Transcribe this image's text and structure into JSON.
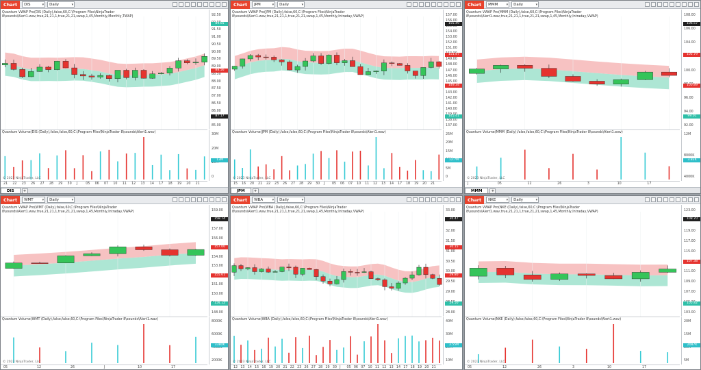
{
  "common": {
    "chart_tab": "Chart",
    "interval": "Daily",
    "copyright": "© 2023 NinjaTrader, LLC",
    "colors": {
      "up": "#35c45a",
      "down": "#e5332f",
      "band_up": "#9fe2cd",
      "band_down": "#f6b7b7",
      "vol_up": "#33c9d4",
      "vol_down": "#e5332f"
    }
  },
  "panels": [
    {
      "symbol": "DIS",
      "tab": "DIS",
      "indicator_title": "Quantum VWAP Pro(DIS (Daily),false,60,C:\\Program Files\\NinjaTrader 8\\sounds\\Alert1.wav,true,21,21,1,true,21,21,swap,1,45,Monthly,Monthly,TWAP)",
      "volume_title": "Quantum Volume(DIS (Daily),false,false,60,C:\\Program Files\\NinjaTrader 8\\sounds\\Alert1.wav)",
      "price_ticks": [
        "92.50",
        "92.00",
        "91.50",
        "91.00",
        "90.50",
        "90.00",
        "89.50",
        "89.00",
        "88.50",
        "88.00",
        "87.50",
        "87.00",
        "86.50",
        "86.00",
        "85.50",
        "85.00"
      ],
      "price_boxes": [
        {
          "text": "89.65",
          "kind": "band"
        },
        {
          "text": "88.56",
          "kind": "down"
        },
        {
          "text": "87.17",
          "kind": "last"
        }
      ],
      "volume_ticks": [
        "30M",
        "20M",
        "10M",
        "0"
      ],
      "volume_box": "13M",
      "dates": [
        "21",
        "22",
        "23",
        "26",
        "27",
        "28",
        "29",
        "30",
        "J",
        "05",
        "06",
        "07",
        "10",
        "11",
        "12",
        "13",
        "14",
        "17",
        "18",
        "19",
        "20",
        "21"
      ]
    },
    {
      "symbol": "JPM",
      "tab": "JPM",
      "indicator_title": "Quantum VWAP Pro(JPM (Daily),false,60,C:\\Program Files\\NinjaTrader 8\\sounds\\Alert1.wav,true,21,21,1,true,21,21,swap,1,45,Monthly,Intraday,VWAP)",
      "volume_title": "Quantum Volume(JPM (Daily),false,false,60,C:\\Program Files\\NinjaTrader 8\\sounds\\Alert1.wav)",
      "price_ticks": [
        "157.00",
        "156.00",
        "155.00",
        "154.00",
        "153.00",
        "152.00",
        "151.00",
        "150.00",
        "149.00",
        "148.00",
        "147.00",
        "146.00",
        "145.00",
        "144.00",
        "143.00",
        "142.00",
        "141.00",
        "140.00",
        "139.00",
        "138.00",
        "137.00"
      ],
      "price_boxes": [
        {
          "text": "155.49",
          "kind": "last"
        },
        {
          "text": "151.87",
          "kind": "down"
        },
        {
          "text": "149.34",
          "kind": "down"
        },
        {
          "text": "145.41",
          "kind": "band"
        }
      ],
      "volume_ticks": [
        "25M",
        "20M",
        "15M",
        "10M",
        "5M",
        "0"
      ],
      "volume_box": "12.7M",
      "dates": [
        "15",
        "16",
        "20",
        "21",
        "22",
        "23",
        "26",
        "27",
        "28",
        "29",
        "30",
        "J",
        "05",
        "06",
        "07",
        "10",
        "11",
        "12",
        "13",
        "14",
        "17",
        "18",
        "19",
        "20",
        "21"
      ]
    },
    {
      "symbol": "MMM",
      "tab": "MMM",
      "indicator_title": "Quantum VWAP Pro(MMM (Daily),false,60,C:\\Program Files\\NinjaTrader 8\\sounds\\Alert1.wav,true,21,21,1,true,21,21,swap,1,45,Monthly,Intraday,VWAP)",
      "volume_title": "Quantum Volume(MMM (Daily),false,false,60,C:\\Program Files\\NinjaTrader 8\\sounds\\Alert1.wav)",
      "price_ticks": [
        "108.00",
        "106.00",
        "104.00",
        "102.00",
        "100.00",
        "98.00",
        "96.00",
        "94.00",
        "92.00"
      ],
      "price_boxes": [
        {
          "text": "106.57",
          "kind": "last"
        },
        {
          "text": "105.79",
          "kind": "down"
        },
        {
          "text": "100.89",
          "kind": "down"
        },
        {
          "text": "99.01",
          "kind": "band"
        }
      ],
      "volume_ticks": [
        "12M",
        "8000K",
        "4000K"
      ],
      "volume_box": "3.83K",
      "dates": [
        "J",
        "05",
        "12",
        "26",
        "3",
        "10",
        "17"
      ]
    },
    {
      "symbol": "WMT",
      "tab": "WMT",
      "indicator_title": "Quantum VWAP Pro(WMT (Daily),false,60,C:\\Program Files\\NinjaTrader 8\\sounds\\Alert1.wav,true,21,21,1,true,21,21,swap,1,45,Monthly,Intraday,VWAP)",
      "volume_title": "Quantum Volume(WMT (Daily),false,false,60,C:\\Program Files\\NinjaTrader 8\\sounds\\Alert1.wav)",
      "price_ticks": [
        "159.00",
        "158.00",
        "157.00",
        "156.00",
        "155.00",
        "154.00",
        "153.00",
        "152.00",
        "151.00",
        "150.00",
        "149.00",
        "148.00"
      ],
      "price_boxes": [
        {
          "text": "158.74",
          "kind": "last"
        },
        {
          "text": "157.00",
          "kind": "down"
        },
        {
          "text": "155.61",
          "kind": "down"
        },
        {
          "text": "154.12",
          "kind": "band"
        }
      ],
      "volume_ticks": [
        "8000K",
        "6000K",
        "4000K",
        "2000K"
      ],
      "volume_box": "3380K",
      "dates": [
        "05",
        "12",
        "26",
        "J",
        "10",
        "17"
      ]
    },
    {
      "symbol": "WBA",
      "tab": "WBA",
      "indicator_title": "Quantum VWAP Pro(WBA (Daily),false,60,C:\\Program Files\\NinjaTrader 8\\sounds\\Alert1.wav,true,21,21,1,true,21,21,swap,1,45,Monthly,Intraday,VWAP)",
      "volume_title": "Quantum Volume(WBA (Daily),false,false,60,C:\\Program Files\\NinjaTrader 8\\sounds\\Alert1.wav)",
      "price_ticks": [
        "33.00",
        "32.50",
        "32.00",
        "31.50",
        "31.00",
        "30.50",
        "30.00",
        "29.50",
        "29.00",
        "28.50",
        "28.00"
      ],
      "price_boxes": [
        {
          "text": "30.47",
          "kind": "last"
        },
        {
          "text": "30.15",
          "kind": "down"
        },
        {
          "text": "29.80",
          "kind": "down"
        },
        {
          "text": "29.50",
          "kind": "band"
        }
      ],
      "volume_ticks": [
        "40M",
        "30M",
        "20M",
        "10M"
      ],
      "volume_box": "3.55M",
      "dates": [
        "12",
        "13",
        "14",
        "15",
        "16",
        "19",
        "20",
        "21",
        "22",
        "23",
        "26",
        "27",
        "28",
        "29",
        "30",
        "J",
        "05",
        "06",
        "07",
        "10",
        "11",
        "12",
        "13",
        "14",
        "17",
        "18",
        "19",
        "20",
        "21"
      ]
    },
    {
      "symbol": "NKE",
      "tab": "NKE",
      "indicator_title": "Quantum VWAP Pro(NKE (Daily),false,60,C:\\Program Files\\NinjaTrader 8\\sounds\\Alert1.wav,true,21,21,1,true,21,21,swap,1,45,Monthly,Intraday,VWAP)",
      "volume_title": "Quantum Volume(NKE (Daily),false,false,60,C:\\Program Files\\NinjaTrader 8\\sounds\\Alert1.wav)",
      "price_ticks": [
        "123.00",
        "121.00",
        "119.00",
        "117.00",
        "115.00",
        "113.00",
        "111.00",
        "109.00",
        "107.00",
        "105.00",
        "103.00"
      ],
      "price_boxes": [
        {
          "text": "108.70",
          "kind": "last"
        },
        {
          "text": "107.38",
          "kind": "down"
        },
        {
          "text": "105.82",
          "kind": "band"
        }
      ],
      "volume_ticks": [
        "20M",
        "15M",
        "10M",
        "5M"
      ],
      "volume_box": "2087K",
      "dates": [
        "05",
        "12",
        "26",
        "3",
        "10",
        "17"
      ]
    }
  ]
}
